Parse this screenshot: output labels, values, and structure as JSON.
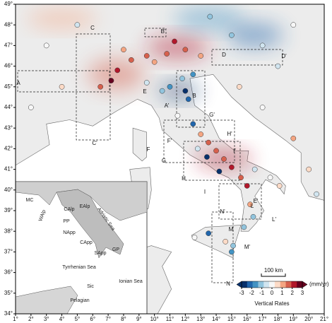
{
  "map_data": {
    "type": "map",
    "lonlim": [
      1,
      21
    ],
    "latlim": [
      34,
      49
    ],
    "lon_ticks": [
      {
        "value": 1,
        "label": "1°"
      },
      {
        "value": 2,
        "label": "2°"
      },
      {
        "value": 3,
        "label": "3°"
      },
      {
        "value": 4,
        "label": "4°"
      },
      {
        "value": 5,
        "label": "5°"
      },
      {
        "value": 6,
        "label": "6°"
      },
      {
        "value": 7,
        "label": "7°"
      },
      {
        "value": 8,
        "label": "8°"
      },
      {
        "value": 9,
        "label": "9°"
      },
      {
        "value": 10,
        "label": "10°"
      },
      {
        "value": 11,
        "label": "11°"
      },
      {
        "value": 12,
        "label": "12°"
      },
      {
        "value": 13,
        "label": "13°"
      },
      {
        "value": 14,
        "label": "14°"
      },
      {
        "value": 15,
        "label": "15°"
      },
      {
        "value": 16,
        "label": "16°"
      },
      {
        "value": 17,
        "label": "17°"
      },
      {
        "value": 18,
        "label": "18°"
      },
      {
        "value": 19,
        "label": "19°"
      },
      {
        "value": 20,
        "label": "20°"
      },
      {
        "value": 21,
        "label": "21°"
      }
    ],
    "lat_ticks": [
      {
        "value": 34,
        "label": "34°"
      },
      {
        "value": 35,
        "label": "35°"
      },
      {
        "value": 36,
        "label": "36°"
      },
      {
        "value": 37,
        "label": "37°"
      },
      {
        "value": 38,
        "label": "38°"
      },
      {
        "value": 39,
        "label": "39°"
      },
      {
        "value": 40,
        "label": "40°"
      },
      {
        "value": 41,
        "label": "41°"
      },
      {
        "value": 42,
        "label": "42°"
      },
      {
        "value": 43,
        "label": "43°"
      },
      {
        "value": 44,
        "label": "44°"
      },
      {
        "value": 45,
        "label": "45°"
      },
      {
        "value": 46,
        "label": "46°"
      },
      {
        "value": 47,
        "label": "47°"
      },
      {
        "value": 48,
        "label": "48°"
      },
      {
        "value": 49,
        "label": "49°"
      }
    ],
    "profile_labels": [
      "A",
      "A'",
      "B",
      "B'",
      "C",
      "C'",
      "D",
      "D'",
      "E",
      "E'",
      "F",
      "F'",
      "G",
      "G'",
      "H",
      "H'",
      "I",
      "I'",
      "L",
      "L'",
      "M",
      "M'",
      "N",
      "N'"
    ],
    "inset_labels": [
      "MC",
      "WAlp",
      "CAlp",
      "EAlp",
      "PP",
      "NApp",
      "Adriatic Sea",
      "CApp",
      "SApp",
      "Tyrrhenian Sea",
      "Ionian Sea",
      "Sic",
      "Pelagian",
      "GP"
    ],
    "scale_label": "100 km",
    "colorbar": {
      "title": "Vertical Rates",
      "unit": "(mm/yr)",
      "lim": [
        -3,
        3
      ],
      "ticks": [
        -3,
        -2,
        -1,
        0,
        1,
        2,
        3
      ],
      "colors": [
        "#08306b",
        "#2166ac",
        "#4393c3",
        "#92c5de",
        "#d1e5f0",
        "#f7f7f7",
        "#fddbc7",
        "#f4a582",
        "#d6604d",
        "#b2182b",
        "#67001f"
      ]
    },
    "stations": [
      {
        "lon": 7.2,
        "lat": 45.3,
        "rate": 2.8
      },
      {
        "lon": 7.6,
        "lat": 45.8,
        "rate": 2.2
      },
      {
        "lon": 8.5,
        "lat": 46.3,
        "rate": 1.8
      },
      {
        "lon": 9.5,
        "lat": 46.5,
        "rate": 1.6
      },
      {
        "lon": 10.8,
        "lat": 46.6,
        "rate": 1.5
      },
      {
        "lon": 12.0,
        "lat": 46.8,
        "rate": 2.0
      },
      {
        "lon": 11.3,
        "lat": 47.2,
        "rate": 2.5
      },
      {
        "lon": 13.0,
        "lat": 46.5,
        "rate": 1.2
      },
      {
        "lon": 6.5,
        "lat": 45.0,
        "rate": 1.5
      },
      {
        "lon": 8.0,
        "lat": 46.8,
        "rate": 1.4
      },
      {
        "lon": 10.0,
        "lat": 46.2,
        "rate": 1.0
      },
      {
        "lon": 11.0,
        "lat": 45.0,
        "rate": -1.8
      },
      {
        "lon": 12.0,
        "lat": 44.8,
        "rate": -2.8
      },
      {
        "lon": 12.2,
        "lat": 44.4,
        "rate": -2.5
      },
      {
        "lon": 10.5,
        "lat": 44.8,
        "rate": -1.2
      },
      {
        "lon": 9.5,
        "lat": 45.2,
        "rate": -0.8
      },
      {
        "lon": 11.8,
        "lat": 45.4,
        "rate": -1.5
      },
      {
        "lon": 12.5,
        "lat": 45.6,
        "rate": -2.0
      },
      {
        "lon": 12.5,
        "lat": 43.2,
        "rate": -2.5
      },
      {
        "lon": 13.0,
        "lat": 42.7,
        "rate": 1.0
      },
      {
        "lon": 13.5,
        "lat": 42.3,
        "rate": 1.5
      },
      {
        "lon": 14.0,
        "lat": 41.9,
        "rate": 2.0
      },
      {
        "lon": 14.5,
        "lat": 41.5,
        "rate": 1.8
      },
      {
        "lon": 15.0,
        "lat": 41.1,
        "rate": 2.2
      },
      {
        "lon": 15.6,
        "lat": 40.6,
        "rate": 1.6
      },
      {
        "lon": 16.0,
        "lat": 40.2,
        "rate": 2.5
      },
      {
        "lon": 12.8,
        "lat": 42.0,
        "rate": -0.5
      },
      {
        "lon": 13.4,
        "lat": 41.6,
        "rate": -2.8
      },
      {
        "lon": 14.2,
        "lat": 40.9,
        "rate": -3.0
      },
      {
        "lon": 11.5,
        "lat": 43.6,
        "rate": -0.3
      },
      {
        "lon": 16.5,
        "lat": 41.0,
        "rate": -0.5
      },
      {
        "lon": 17.5,
        "lat": 40.6,
        "rate": -0.3
      },
      {
        "lon": 18.1,
        "lat": 40.2,
        "rate": 0.4
      },
      {
        "lon": 16.2,
        "lat": 39.3,
        "rate": 1.2
      },
      {
        "lon": 16.4,
        "lat": 38.7,
        "rate": -1.5
      },
      {
        "lon": 15.8,
        "lat": 38.2,
        "rate": -1.0
      },
      {
        "lon": 13.5,
        "lat": 37.9,
        "rate": -2.2
      },
      {
        "lon": 14.6,
        "lat": 37.5,
        "rate": 0.5
      },
      {
        "lon": 15.1,
        "lat": 37.3,
        "rate": -1.5
      },
      {
        "lon": 12.6,
        "lat": 37.7,
        "rate": 0.2
      },
      {
        "lon": 15.0,
        "lat": 37.0,
        "rate": -2.0
      },
      {
        "lon": 15.5,
        "lat": 45.0,
        "rate": 0.5
      },
      {
        "lon": 17.0,
        "lat": 44.0,
        "rate": -0.3
      },
      {
        "lon": 19.0,
        "lat": 42.5,
        "rate": 1.0
      },
      {
        "lon": 20.0,
        "lat": 41.0,
        "rate": 0.8
      },
      {
        "lon": 20.5,
        "lat": 39.8,
        "rate": -0.8
      },
      {
        "lon": 3.0,
        "lat": 47.0,
        "rate": 0.2
      },
      {
        "lon": 5.0,
        "lat": 48.0,
        "rate": -0.5
      },
      {
        "lon": 15.0,
        "lat": 47.5,
        "rate": -1.2
      },
      {
        "lon": 17.0,
        "lat": 47.0,
        "rate": -0.6
      },
      {
        "lon": 19.0,
        "lat": 48.0,
        "rate": 0.3
      },
      {
        "lon": 13.6,
        "lat": 48.4,
        "rate": -1.5
      },
      {
        "lon": 2.0,
        "lat": 44.0,
        "rate": 0.1
      },
      {
        "lon": 4.0,
        "lat": 45.0,
        "rate": 0.5
      },
      {
        "lon": 18.0,
        "lat": 46.0,
        "rate": -0.4
      },
      {
        "lon": 9.1,
        "lat": 39.3,
        "rate": -0.5
      }
    ]
  }
}
